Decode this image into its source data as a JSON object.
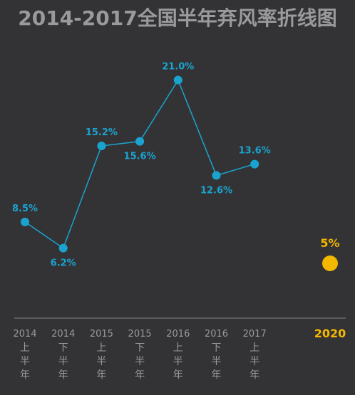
{
  "chart_data": {
    "type": "line",
    "title": "2014-2017全国半年弃风率折线图",
    "categories": [
      {
        "year": "2014",
        "half": [
          "上",
          "半",
          "年"
        ]
      },
      {
        "year": "2014",
        "half": [
          "下",
          "半",
          "年"
        ]
      },
      {
        "year": "2015",
        "half": [
          "上",
          "半",
          "年"
        ]
      },
      {
        "year": "2015",
        "half": [
          "下",
          "半",
          "年"
        ]
      },
      {
        "year": "2016",
        "half": [
          "上",
          "半",
          "年"
        ]
      },
      {
        "year": "2016",
        "half": [
          "下",
          "半",
          "年"
        ]
      },
      {
        "year": "2017",
        "half": [
          "上",
          "半",
          "年"
        ]
      }
    ],
    "values": [
      8.5,
      6.2,
      15.2,
      15.6,
      21.0,
      12.6,
      13.6
    ],
    "value_labels": [
      "8.5%",
      "6.2%",
      "15.2%",
      "15.6%",
      "21.0%",
      "12.6%",
      "13.6%"
    ],
    "label_positions": [
      "above",
      "below",
      "above",
      "below",
      "above",
      "below",
      "above"
    ],
    "target": {
      "year": "2020",
      "value": 5,
      "label": "5%"
    },
    "ylim": [
      0,
      25
    ],
    "grid": false,
    "colors": {
      "background": "#333335",
      "line": "#1ba3cf",
      "title": "#9a9a9c",
      "tick": "#9a9a9c",
      "axis": "#5a5a5c",
      "target": "#f5b800"
    }
  }
}
